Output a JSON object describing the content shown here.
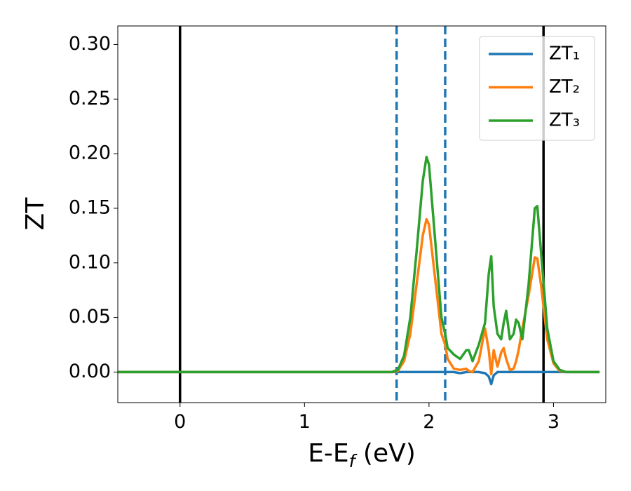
{
  "chart_data": {
    "type": "line",
    "ylabel": "ZT",
    "xlabel": [
      "E-E",
      "f",
      " (eV)"
    ],
    "xlim": [
      -0.5,
      3.42
    ],
    "ylim": [
      -0.028,
      0.317
    ],
    "xticks": [
      0,
      1,
      2,
      3
    ],
    "yticks": [
      {
        "value": 0,
        "label": "0.00"
      },
      {
        "value": 0.05,
        "label": "0.05"
      },
      {
        "value": 0.1,
        "label": "0.10"
      },
      {
        "value": 0.15,
        "label": "0.15"
      },
      {
        "value": 0.2,
        "label": "0.20"
      },
      {
        "value": 0.25,
        "label": "0.25"
      },
      {
        "value": 0.3,
        "label": "0.30"
      }
    ],
    "legend": "upper right",
    "vlines": [
      {
        "value": 0,
        "color": "#000000",
        "style": "solid"
      },
      {
        "value": 2.92,
        "color": "#000000",
        "style": "solid"
      },
      {
        "value": 1.74,
        "color": "#1f77b4",
        "style": "dashed"
      },
      {
        "value": 2.13,
        "color": "#1f77b4",
        "style": "dashed"
      }
    ],
    "x": [
      -0.5,
      0,
      0.5,
      1.0,
      1.5,
      1.7,
      1.75,
      1.8,
      1.85,
      1.9,
      1.95,
      1.98,
      2.0,
      2.05,
      2.1,
      2.13,
      2.15,
      2.2,
      2.25,
      2.3,
      2.32,
      2.35,
      2.4,
      2.45,
      2.48,
      2.5,
      2.52,
      2.55,
      2.58,
      2.6,
      2.62,
      2.65,
      2.68,
      2.7,
      2.72,
      2.75,
      2.8,
      2.85,
      2.87,
      2.9,
      2.95,
      3.0,
      3.05,
      3.1,
      3.2,
      3.37
    ],
    "series": [
      {
        "name": "ZT₁",
        "color": "#1f77b4",
        "values": [
          0,
          0,
          0,
          0,
          0,
          0,
          0,
          0,
          0,
          0,
          0,
          0,
          0,
          0,
          0,
          0,
          0,
          0,
          -0.001,
          0,
          0,
          0,
          0,
          -0.001,
          -0.004,
          -0.011,
          -0.003,
          0,
          0,
          0,
          0,
          0,
          0,
          0,
          0,
          0,
          0,
          0,
          0,
          0,
          0,
          0,
          0,
          0,
          0,
          0
        ]
      },
      {
        "name": "ZT₂",
        "color": "#ff7f0e",
        "values": [
          0,
          0,
          0,
          0,
          0,
          0,
          0.001,
          0.01,
          0.035,
          0.08,
          0.125,
          0.14,
          0.135,
          0.085,
          0.035,
          0.025,
          0.012,
          0.003,
          0.002,
          0.003,
          0.001,
          0,
          0.01,
          0.04,
          0.02,
          -0.002,
          0.02,
          0.005,
          0.018,
          0.022,
          0.012,
          0.002,
          0.003,
          0.01,
          0.02,
          0.04,
          0.07,
          0.105,
          0.104,
          0.08,
          0.03,
          0.008,
          0.001,
          0,
          0,
          0
        ]
      },
      {
        "name": "ZT₃",
        "color": "#2ca02c",
        "values": [
          0,
          0,
          0,
          0,
          0,
          0,
          0.002,
          0.015,
          0.05,
          0.11,
          0.175,
          0.197,
          0.19,
          0.12,
          0.05,
          0.035,
          0.022,
          0.016,
          0.012,
          0.02,
          0.02,
          0.01,
          0.025,
          0.045,
          0.09,
          0.106,
          0.06,
          0.035,
          0.03,
          0.045,
          0.056,
          0.03,
          0.035,
          0.048,
          0.045,
          0.03,
          0.08,
          0.15,
          0.152,
          0.11,
          0.04,
          0.01,
          0.002,
          0,
          0,
          0
        ]
      }
    ]
  }
}
